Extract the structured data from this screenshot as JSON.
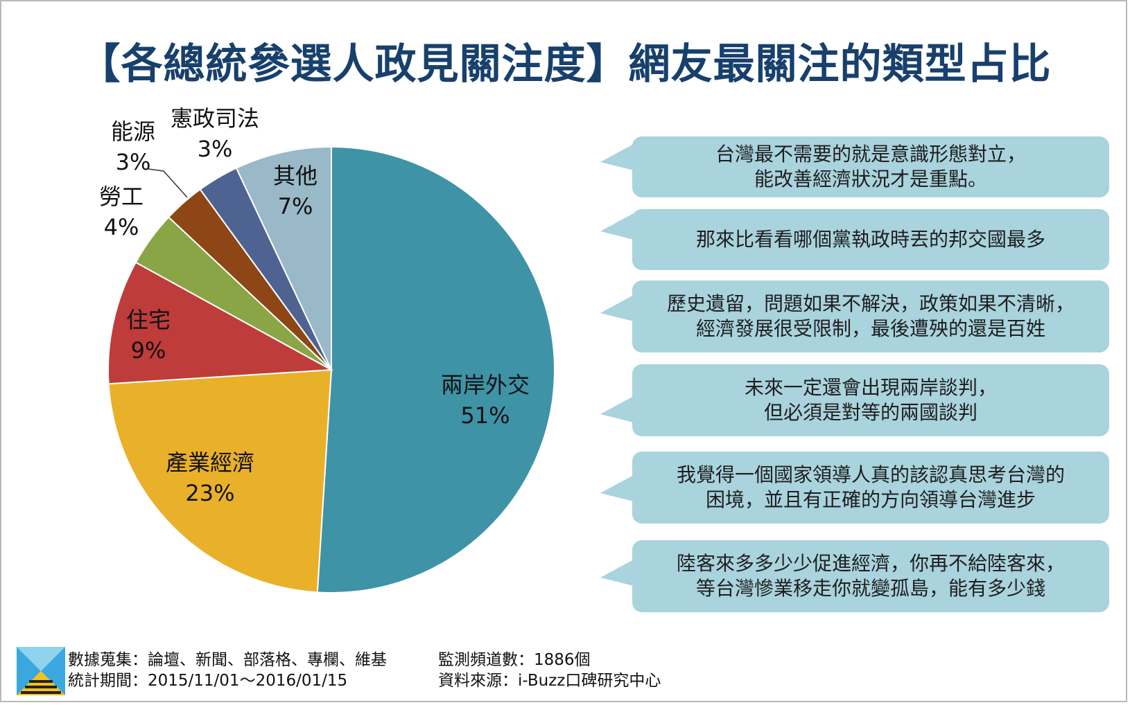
{
  "title": "【各總統參選人政見關注度】網友最關注的類型占比",
  "chart_data": {
    "type": "pie",
    "title": "【各總統參選人政見關注度】網友最關注的類型占比",
    "slices": [
      {
        "label": "兩岸外交",
        "pct_label": "51%",
        "value": 51,
        "color": "#3f93a6"
      },
      {
        "label": "產業經濟",
        "pct_label": "23%",
        "value": 23,
        "color": "#e9b02a"
      },
      {
        "label": "住宅",
        "pct_label": "9%",
        "value": 9,
        "color": "#be3c3a"
      },
      {
        "label": "勞工",
        "pct_label": "4%",
        "value": 4,
        "color": "#89a545"
      },
      {
        "label": "能源",
        "pct_label": "3%",
        "value": 3,
        "color": "#8e4617"
      },
      {
        "label": "憲政司法",
        "pct_label": "3%",
        "value": 3,
        "color": "#4f6392"
      },
      {
        "label": "其他",
        "pct_label": "7%",
        "value": 7,
        "color": "#99b9c8"
      }
    ]
  },
  "quotes": [
    {
      "line1": "台灣最不需要的就是意識形態對立，",
      "line2": "能改善經濟狀況才是重點。"
    },
    {
      "line1": "那來比看看哪個黨執政時丟的邦交國最多",
      "line2": ""
    },
    {
      "line1": "歷史遺留，問題如果不解決，政策如果不清晰，",
      "line2": "經濟發展很受限制，最後遭殃的還是百姓"
    },
    {
      "line1": "未來一定還會出現兩岸談判，",
      "line2": "但必須是對等的兩國談判"
    },
    {
      "line1": "我覺得一個國家領導人真的該認真思考台灣的",
      "line2": "困境，並且有正確的方向領導台灣進步"
    },
    {
      "line1": "陸客來多多少少促進經濟，你再不給陸客來，",
      "line2": "等台灣慘業移走你就變孤島，能有多少錢"
    }
  ],
  "footer": {
    "collection": "數據蒐集：論壇、新聞、部落格、專欄、維基",
    "period": "統計期間：2015/11/01～2016/01/15",
    "channels": "監測頻道數：1886個",
    "source": "資料來源：i-Buzz口碑研究中心"
  },
  "colors": {
    "title": "#17406d",
    "bubble": "#a9d3dd"
  }
}
